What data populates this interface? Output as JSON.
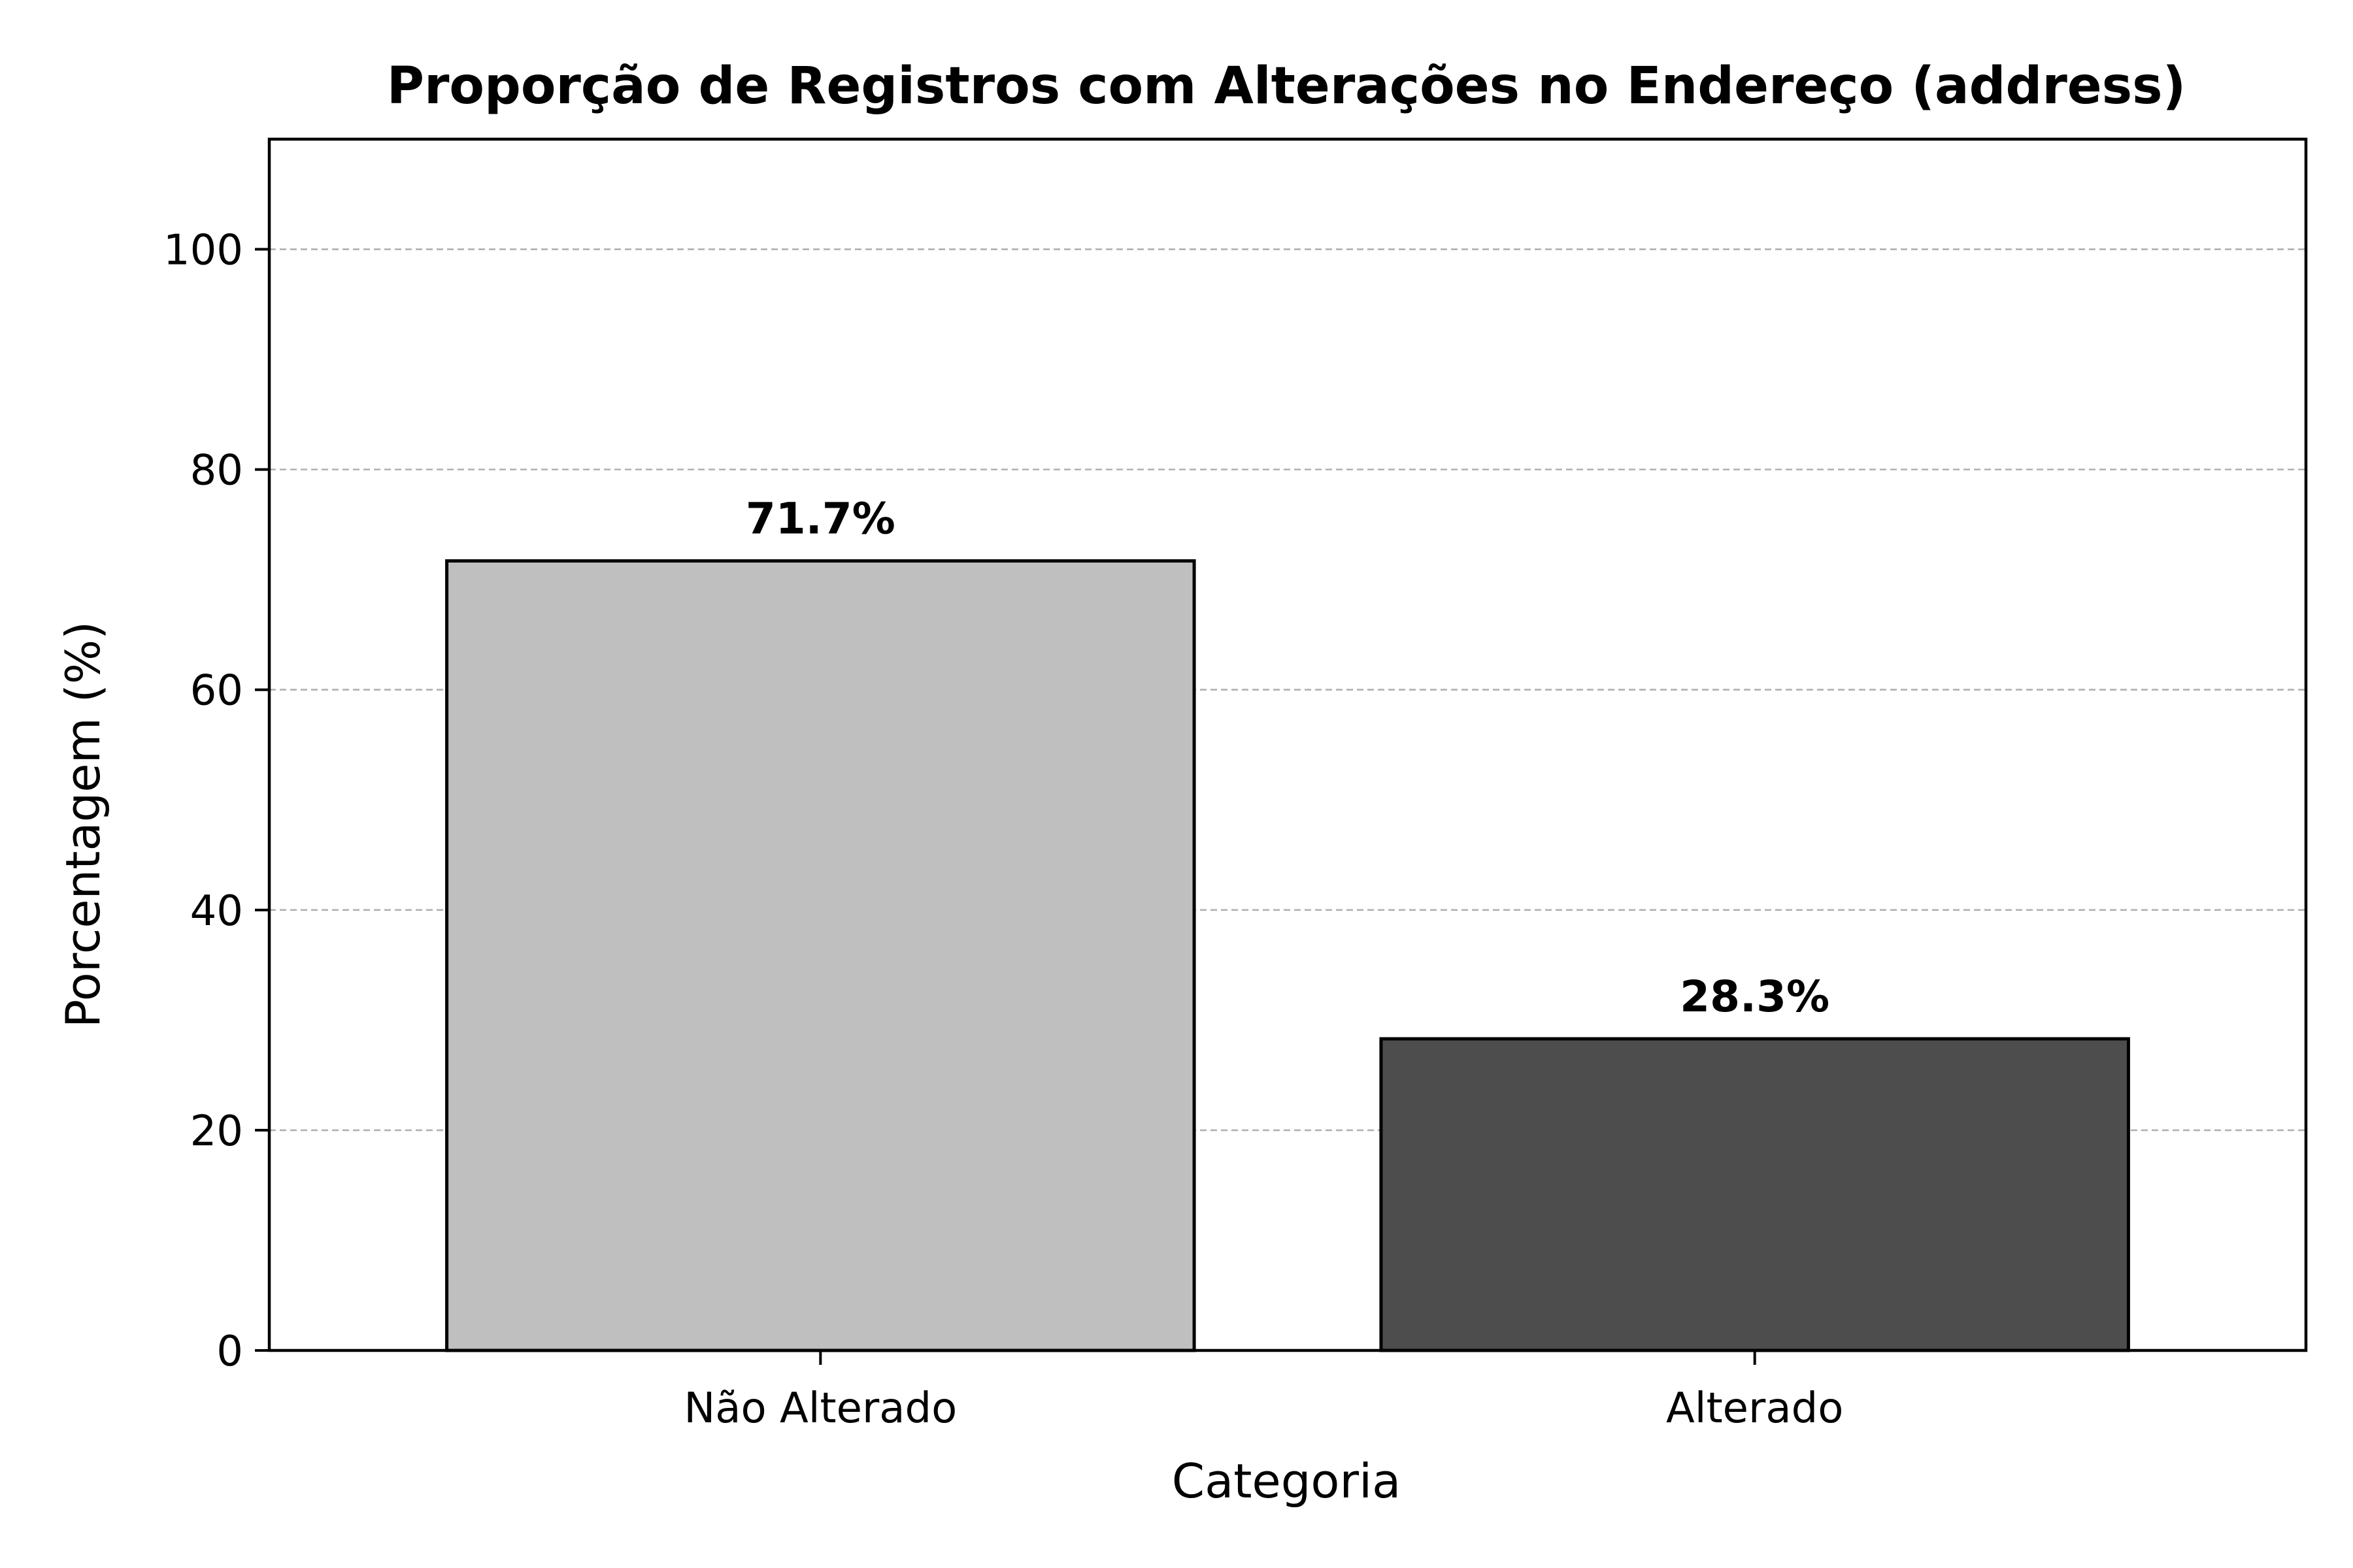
{
  "chart_data": {
    "type": "bar",
    "title": "Proporção de Registros com Alterações no Endereço (address)",
    "xlabel": "Categoria",
    "ylabel": "Porcentagem (%)",
    "categories": [
      "Não Alterado",
      "Alterado"
    ],
    "values": [
      71.7,
      28.3
    ],
    "data_labels": [
      "71.7%",
      "28.3%"
    ],
    "bar_colors": [
      "#bfbfbf",
      "#4d4d4d"
    ],
    "edge_color": "#000000",
    "grid_color": "#b0b0b0",
    "ylim": [
      0,
      110
    ],
    "yticks": [
      0,
      20,
      40,
      60,
      80,
      100
    ],
    "ytick_labels": [
      "0",
      "20",
      "40",
      "60",
      "80",
      "100"
    ],
    "grid": "y-dashed",
    "legend": "none"
  }
}
